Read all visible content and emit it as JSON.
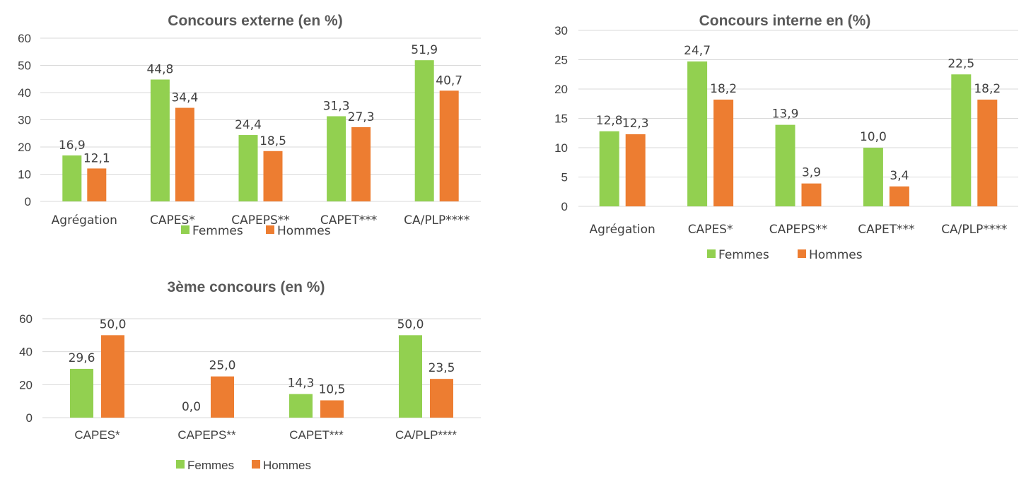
{
  "colors": {
    "femmes": "#92D050",
    "hommes": "#ED7D31",
    "grid": "#D9D9D9",
    "text": "#404040"
  },
  "chart_data": [
    {
      "type": "bar",
      "title": "Concours externe (en %)",
      "categories": [
        "Agrégation",
        "CAPES*",
        "CAPEPS**",
        "CAPET***",
        "CA/PLP****"
      ],
      "series": [
        {
          "name": "Femmes",
          "values": [
            16.9,
            44.8,
            24.4,
            31.3,
            51.9
          ],
          "labels": [
            "16,9",
            "44,8",
            "24,4",
            "31,3",
            "51,9"
          ]
        },
        {
          "name": "Hommes",
          "values": [
            12.1,
            34.4,
            18.5,
            27.3,
            40.7
          ],
          "labels": [
            "12,1",
            "34,4",
            "18,5",
            "27,3",
            "40,7"
          ]
        }
      ],
      "ylim": [
        0,
        60
      ],
      "yticks": [
        "0",
        "10",
        "20",
        "30",
        "40",
        "50",
        "60"
      ],
      "grid": true,
      "legend": "bottom"
    },
    {
      "type": "bar",
      "title": "Concours interne en (%)",
      "categories": [
        "Agrégation",
        "CAPES*",
        "CAPEPS**",
        "CAPET***",
        "CA/PLP****"
      ],
      "series": [
        {
          "name": "Femmes",
          "values": [
            12.8,
            24.7,
            13.9,
            10.0,
            22.5
          ],
          "labels": [
            "12,8",
            "24,7",
            "13,9",
            "10,0",
            "22,5"
          ]
        },
        {
          "name": "Hommes",
          "values": [
            12.3,
            18.2,
            3.9,
            3.4,
            18.2
          ],
          "labels": [
            "12,3",
            "18,2",
            "3,9",
            "3,4",
            "18,2"
          ]
        }
      ],
      "ylim": [
        0,
        30
      ],
      "yticks": [
        "0",
        "5",
        "10",
        "15",
        "20",
        "25",
        "30"
      ],
      "grid": true,
      "legend": "bottom"
    },
    {
      "type": "bar",
      "title": "3ème concours (en %)",
      "categories": [
        "CAPES*",
        "CAPEPS**",
        "CAPET***",
        "CA/PLP****"
      ],
      "series": [
        {
          "name": "Femmes",
          "values": [
            29.6,
            0.0,
            14.3,
            50.0
          ],
          "labels": [
            "29,6",
            "0,0",
            "14,3",
            "50,0"
          ]
        },
        {
          "name": "Hommes",
          "values": [
            50.0,
            25.0,
            10.5,
            23.5
          ],
          "labels": [
            "50,0",
            "25,0",
            "10,5",
            "23,5"
          ]
        }
      ],
      "ylim": [
        0,
        60
      ],
      "yticks": [
        "0",
        "20",
        "40",
        "60"
      ],
      "grid": true,
      "legend": "bottom"
    }
  ]
}
